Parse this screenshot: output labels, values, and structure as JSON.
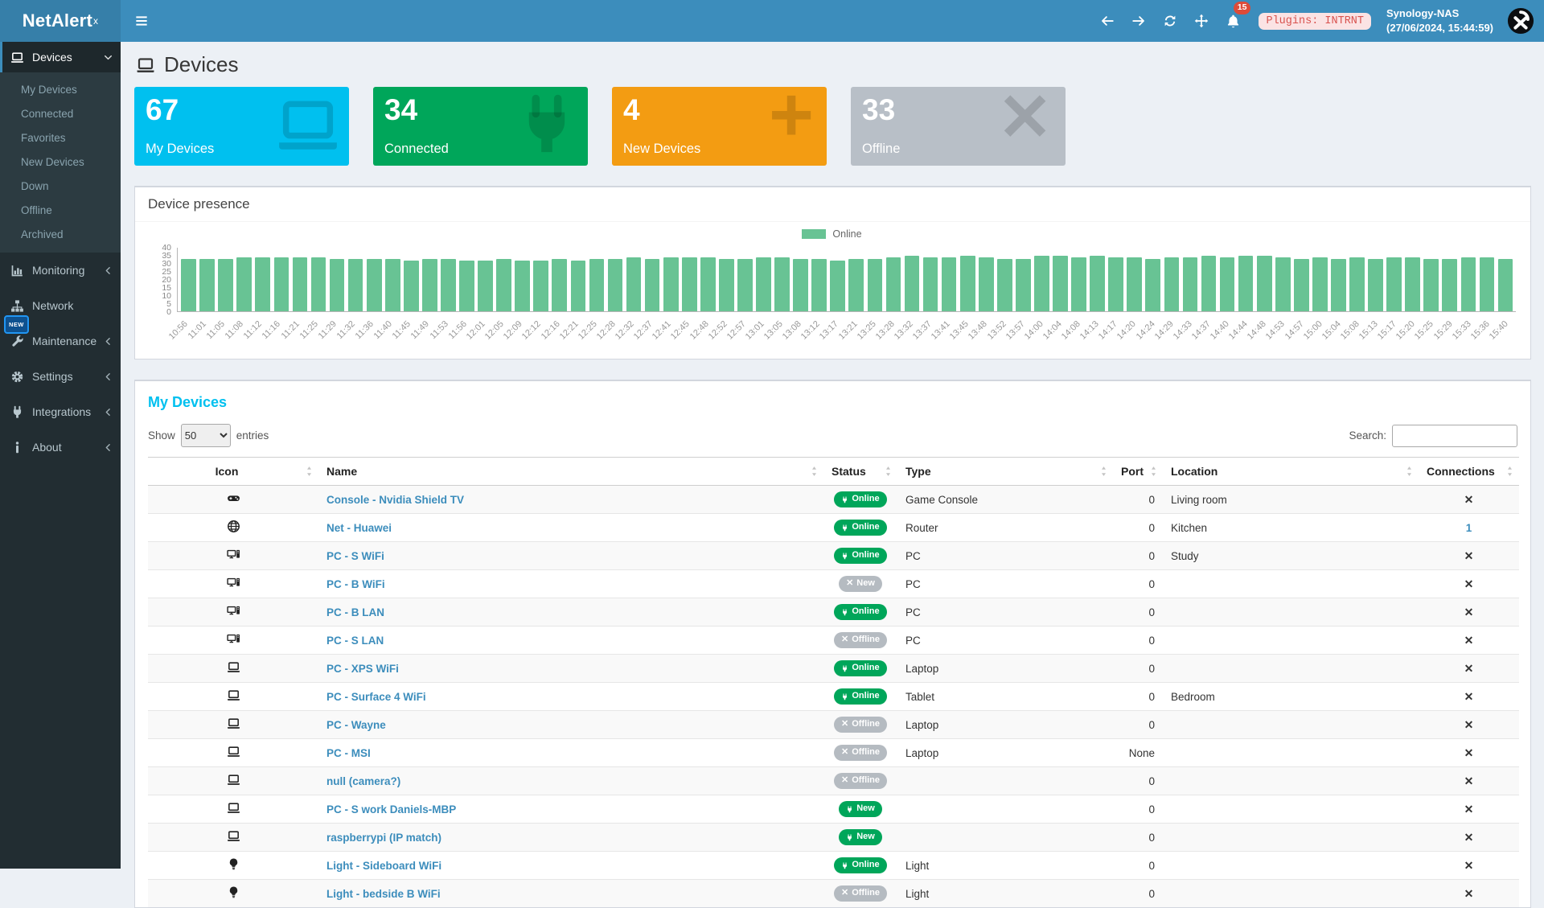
{
  "brand": {
    "name": "NetAlert",
    "sup": "x"
  },
  "topbar": {
    "nav_icons": [
      "arrow-left-icon",
      "arrow-right-icon",
      "refresh-icon",
      "move-icon"
    ],
    "notifications_count": "15",
    "plugins_badge": "Plugins: INTRNT",
    "host": "Synology-NAS",
    "datetime": "(27/06/2024, 15:44:59)"
  },
  "sidebar": {
    "new_badge": "NEW",
    "items": [
      {
        "label": "Devices",
        "icon": "laptop-icon",
        "chevron": "down",
        "active": true,
        "children": [
          "My Devices",
          "Connected",
          "Favorites",
          "New Devices",
          "Down",
          "Offline",
          "Archived"
        ]
      },
      {
        "label": "Monitoring",
        "icon": "chart-icon",
        "chevron": "left"
      },
      {
        "label": "Network",
        "icon": "sitemap-icon",
        "chevron": ""
      },
      {
        "label": "Maintenance",
        "icon": "wrench-icon",
        "chevron": "left"
      },
      {
        "label": "Settings",
        "icon": "gear-icon",
        "chevron": "left"
      },
      {
        "label": "Integrations",
        "icon": "plug-icon",
        "chevron": "left"
      },
      {
        "label": "About",
        "icon": "info-icon",
        "chevron": "left"
      }
    ]
  },
  "page": {
    "title": "Devices",
    "title_icon": "laptop-icon"
  },
  "summary_cards": [
    {
      "value": "67",
      "label": "My Devices",
      "color": "#00c0ef",
      "icon": "laptop-icon"
    },
    {
      "value": "34",
      "label": "Connected",
      "color": "#00a65a",
      "icon": "plug-icon"
    },
    {
      "value": "4",
      "label": "New Devices",
      "color": "#f39c12",
      "icon": "plus-icon"
    },
    {
      "value": "33",
      "label": "Offline",
      "color": "#b8bfc7",
      "icon": "x-icon"
    }
  ],
  "presence_panel": {
    "title": "Device presence"
  },
  "chart_data": {
    "type": "bar",
    "title": "Device presence",
    "legend": [
      {
        "name": "Online",
        "color": "#68c394"
      }
    ],
    "legend_position": "top",
    "grid": false,
    "ylim": [
      0,
      40
    ],
    "yticks": [
      0,
      5,
      10,
      15,
      20,
      25,
      30,
      35,
      40
    ],
    "x_labels": [
      "10:56",
      "11:01",
      "11:05",
      "11:08",
      "11:12",
      "11:16",
      "11:21",
      "11:25",
      "11:29",
      "11:32",
      "11:36",
      "11:40",
      "11:45",
      "11:49",
      "11:53",
      "11:56",
      "12:01",
      "12:05",
      "12:09",
      "12:12",
      "12:16",
      "12:21",
      "12:25",
      "12:28",
      "12:32",
      "12:37",
      "12:41",
      "12:45",
      "12:48",
      "12:52",
      "12:57",
      "13:01",
      "13:05",
      "13:08",
      "13:12",
      "13:17",
      "13:21",
      "13:25",
      "13:28",
      "13:32",
      "13:37",
      "13:41",
      "13:45",
      "13:48",
      "13:52",
      "13:57",
      "14:00",
      "14:04",
      "14:08",
      "14:13",
      "14:17",
      "14:20",
      "14:24",
      "14:29",
      "14:33",
      "14:37",
      "14:40",
      "14:44",
      "14:48",
      "14:53",
      "14:57",
      "15:00",
      "15:04",
      "15:08",
      "15:13",
      "15:17",
      "15:20",
      "15:25",
      "15:29",
      "15:33",
      "15:36",
      "15:40"
    ],
    "values": [
      33,
      33,
      33,
      34,
      34,
      34,
      34,
      34,
      33,
      33,
      33,
      33,
      32,
      33,
      33,
      32,
      32,
      33,
      32,
      32,
      33,
      32,
      33,
      33,
      34,
      33,
      34,
      34,
      34,
      33,
      33,
      34,
      34,
      33,
      33,
      32,
      33,
      33,
      34,
      35,
      34,
      34,
      35,
      34,
      33,
      33,
      35,
      35,
      34,
      35,
      34,
      34,
      33,
      34,
      34,
      35,
      34,
      35,
      35,
      34,
      33,
      34,
      33,
      34,
      33,
      34,
      34,
      33,
      33,
      34,
      34,
      33
    ]
  },
  "table": {
    "title": "My Devices",
    "show_label": "Show",
    "page_length": "50",
    "entries_label": "entries",
    "search_label": "Search:",
    "search_value": "",
    "columns": [
      "Icon",
      "Name",
      "Status",
      "Type",
      "Port",
      "Location",
      "Connections"
    ],
    "rows": [
      {
        "icon": "gamepad-icon",
        "name": "Console - Nvidia Shield TV",
        "status": "Online",
        "status_color": "green",
        "status_icon": "plug-icon",
        "type": "Game Console",
        "port": "0",
        "location": "Living room",
        "connections": "✕"
      },
      {
        "icon": "globe-icon",
        "name": "Net - Huawei",
        "status": "Online",
        "status_color": "green",
        "status_icon": "plug-icon",
        "type": "Router",
        "port": "0",
        "location": "Kitchen",
        "connections": "1"
      },
      {
        "icon": "desktop-icon",
        "name": "PC - S WiFi",
        "status": "Online",
        "status_color": "green",
        "status_icon": "plug-icon",
        "type": "PC",
        "port": "0",
        "location": "Study",
        "connections": "✕"
      },
      {
        "icon": "desktop-icon",
        "name": "PC - B WiFi",
        "status": "New",
        "status_color": "gray",
        "status_icon": "x-icon",
        "type": "PC",
        "port": "0",
        "location": "",
        "connections": "✕"
      },
      {
        "icon": "desktop-icon",
        "name": "PC - B LAN",
        "status": "Online",
        "status_color": "green",
        "status_icon": "plug-icon",
        "type": "PC",
        "port": "0",
        "location": "",
        "connections": "✕"
      },
      {
        "icon": "desktop-icon",
        "name": "PC - S LAN",
        "status": "Offline",
        "status_color": "gray",
        "status_icon": "x-icon",
        "type": "PC",
        "port": "0",
        "location": "",
        "connections": "✕"
      },
      {
        "icon": "laptop-icon",
        "name": "PC - XPS WiFi",
        "status": "Online",
        "status_color": "green",
        "status_icon": "plug-icon",
        "type": "Laptop",
        "port": "0",
        "location": "",
        "connections": "✕"
      },
      {
        "icon": "laptop-icon",
        "name": "PC - Surface 4 WiFi",
        "status": "Online",
        "status_color": "green",
        "status_icon": "plug-icon",
        "type": "Tablet",
        "port": "0",
        "location": "Bedroom",
        "connections": "✕"
      },
      {
        "icon": "laptop-icon",
        "name": "PC - Wayne",
        "status": "Offline",
        "status_color": "gray",
        "status_icon": "x-icon",
        "type": "Laptop",
        "port": "0",
        "location": "",
        "connections": "✕"
      },
      {
        "icon": "laptop-icon",
        "name": "PC - MSI",
        "status": "Offline",
        "status_color": "gray",
        "status_icon": "x-icon",
        "type": "Laptop",
        "port": "None",
        "location": "",
        "connections": "✕"
      },
      {
        "icon": "laptop-icon",
        "name": "null (camera?)",
        "status": "Offline",
        "status_color": "gray",
        "status_icon": "x-icon",
        "type": "",
        "port": "0",
        "location": "",
        "connections": "✕"
      },
      {
        "icon": "laptop-icon",
        "name": "PC - S work Daniels-MBP",
        "status": "New",
        "status_color": "green",
        "status_icon": "plug-icon",
        "type": "",
        "port": "0",
        "location": "",
        "connections": "✕"
      },
      {
        "icon": "laptop-icon",
        "name": "raspberrypi (IP match)",
        "status": "New",
        "status_color": "green",
        "status_icon": "plug-icon",
        "type": "",
        "port": "0",
        "location": "",
        "connections": "✕"
      },
      {
        "icon": "bulb-icon",
        "name": "Light - Sideboard WiFi",
        "status": "Online",
        "status_color": "green",
        "status_icon": "plug-icon",
        "type": "Light",
        "port": "0",
        "location": "",
        "connections": "✕"
      },
      {
        "icon": "bulb-icon",
        "name": "Light - bedside B WiFi",
        "status": "Offline",
        "status_color": "gray",
        "status_icon": "x-icon",
        "type": "Light",
        "port": "0",
        "location": "",
        "connections": "✕"
      }
    ]
  }
}
